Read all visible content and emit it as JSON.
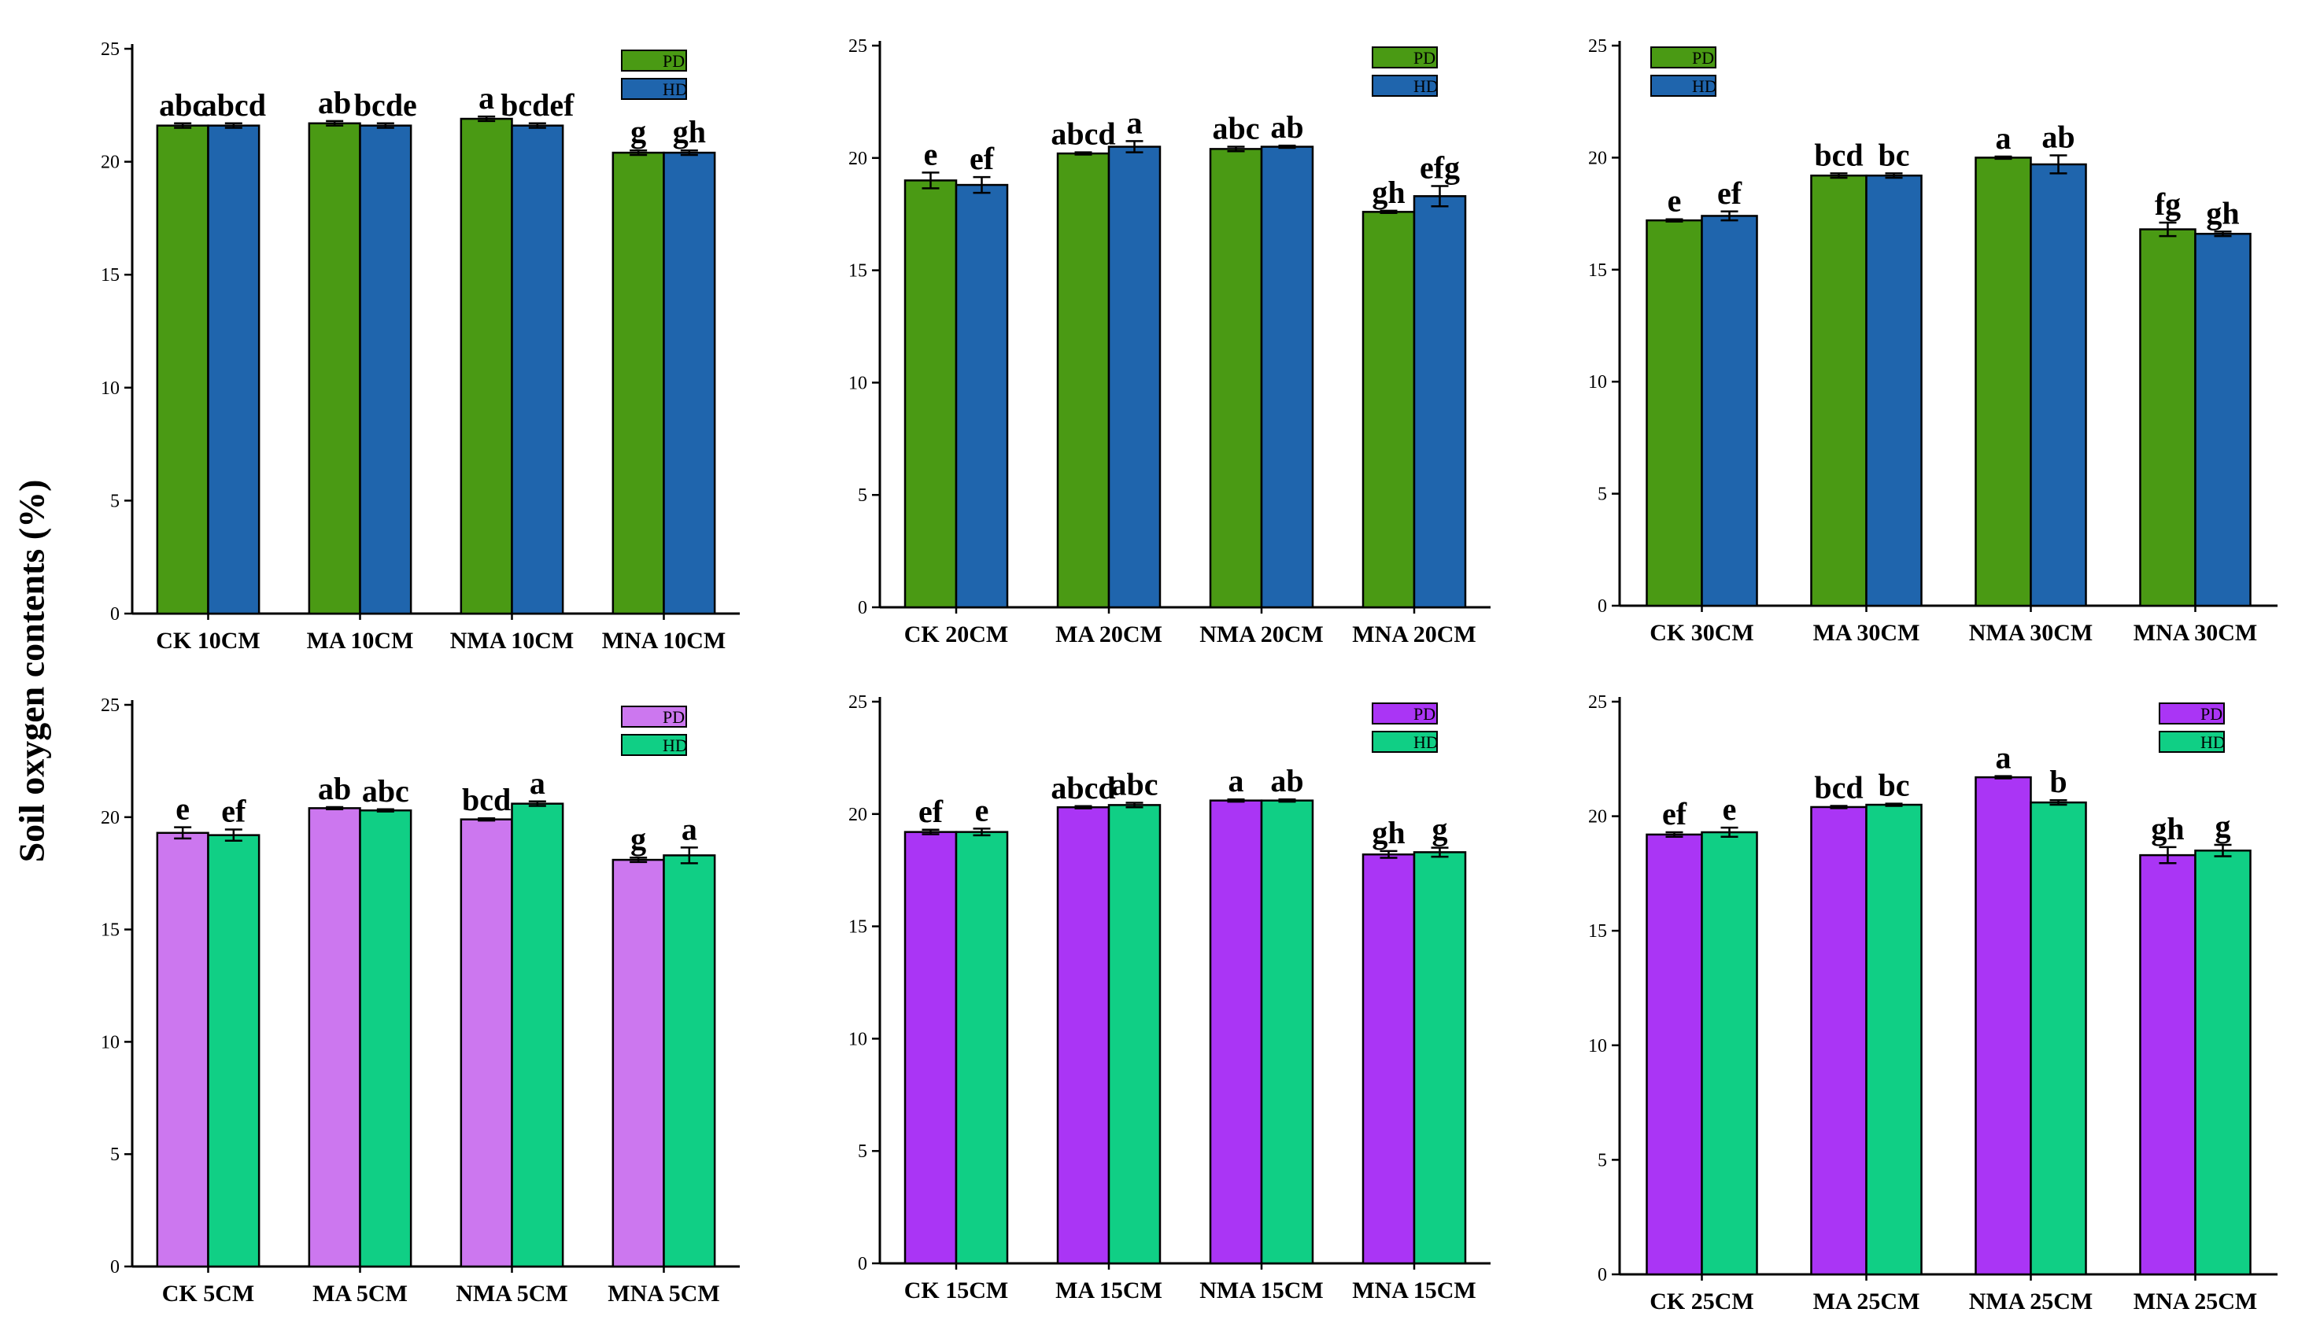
{
  "figure": {
    "ylabel": "Soil oxygen contents (%)"
  },
  "chart_data": [
    {
      "type": "bar",
      "categories": [
        "CK 10CM",
        "MA 10CM",
        "NMA 10CM",
        "MNA 10CM"
      ],
      "series": [
        {
          "name": "PD",
          "color": "#4a9a14",
          "values": [
            21.6,
            21.7,
            21.9,
            20.4
          ],
          "errors": [
            0.1,
            0.1,
            0.1,
            0.1
          ],
          "sig": [
            "abc",
            "ab",
            "a",
            "g"
          ]
        },
        {
          "name": "HD",
          "color": "#1f65ad",
          "values": [
            21.6,
            21.6,
            21.6,
            20.4
          ],
          "errors": [
            0.1,
            0.1,
            0.1,
            0.1
          ],
          "sig": [
            "abcd",
            "bcde",
            "bcdef",
            "gh"
          ]
        }
      ],
      "ylim": [
        0,
        25
      ],
      "yticks": [
        0,
        5,
        10,
        15,
        20,
        25
      ],
      "legend_position": "top-right"
    },
    {
      "type": "bar",
      "categories": [
        "CK 20CM",
        "MA  20CM",
        "NMA 20CM",
        "MNA 20CM"
      ],
      "series": [
        {
          "name": "PD",
          "color": "#4a9a14",
          "values": [
            19.0,
            20.2,
            20.4,
            17.6
          ],
          "errors": [
            0.35,
            0.05,
            0.1,
            0.05
          ],
          "sig": [
            "e",
            "abcd",
            "abc",
            "gh"
          ]
        },
        {
          "name": "HD",
          "color": "#1f65ad",
          "values": [
            18.8,
            20.5,
            20.5,
            18.3
          ],
          "errors": [
            0.35,
            0.25,
            0.05,
            0.45
          ],
          "sig": [
            "ef",
            "a",
            "ab",
            "efg"
          ]
        }
      ],
      "ylim": [
        0,
        25
      ],
      "yticks": [
        0,
        5,
        10,
        15,
        20,
        25
      ],
      "legend_position": "top-right"
    },
    {
      "type": "bar",
      "categories": [
        "CK 30CM",
        "MA 30CM",
        "NMA 30CM",
        "MNA 30CM"
      ],
      "series": [
        {
          "name": "PD",
          "color": "#4a9a14",
          "values": [
            17.2,
            19.2,
            20.0,
            16.8
          ],
          "errors": [
            0.05,
            0.1,
            0.05,
            0.3
          ],
          "sig": [
            "e",
            "bcd",
            "a",
            "fg"
          ]
        },
        {
          "name": "HD",
          "color": "#1f65ad",
          "values": [
            17.4,
            19.2,
            19.7,
            16.6
          ],
          "errors": [
            0.2,
            0.1,
            0.4,
            0.1
          ],
          "sig": [
            "ef",
            "bc",
            "ab",
            "gh"
          ]
        }
      ],
      "ylim": [
        0,
        25
      ],
      "yticks": [
        0,
        5,
        10,
        15,
        20,
        25
      ],
      "legend_position": "top-left"
    },
    {
      "type": "bar",
      "categories": [
        "CK 5CM",
        "MA 5CM",
        "NMA 5CM",
        "MNA 5CM"
      ],
      "series": [
        {
          "name": "PD",
          "color": "#cc77ef",
          "values": [
            19.3,
            20.4,
            19.9,
            18.1
          ],
          "errors": [
            0.25,
            0.05,
            0.05,
            0.1
          ],
          "sig": [
            "e",
            "ab",
            "bcd",
            "g"
          ]
        },
        {
          "name": "HD",
          "color": "#10cf85",
          "values": [
            19.2,
            20.3,
            20.6,
            18.3
          ],
          "errors": [
            0.25,
            0.05,
            0.1,
            0.35
          ],
          "sig": [
            "ef",
            "abc",
            "a",
            "a"
          ]
        }
      ],
      "ylim": [
        0,
        25
      ],
      "yticks": [
        0,
        5,
        10,
        15,
        20,
        25
      ],
      "legend_position": "top-right"
    },
    {
      "type": "bar",
      "categories": [
        "CK 15CM",
        "MA 15CM",
        "NMA 15CM",
        "MNA 15CM"
      ],
      "series": [
        {
          "name": "PD",
          "color": "#aa35f5",
          "values": [
            19.2,
            20.3,
            20.6,
            18.2
          ],
          "errors": [
            0.1,
            0.05,
            0.05,
            0.15
          ],
          "sig": [
            "ef",
            "abcd",
            "a",
            "gh"
          ]
        },
        {
          "name": "HD",
          "color": "#10cf85",
          "values": [
            19.2,
            20.4,
            20.6,
            18.3
          ],
          "errors": [
            0.15,
            0.1,
            0.05,
            0.2
          ],
          "sig": [
            "e",
            "abc",
            "ab",
            "g"
          ]
        }
      ],
      "ylim": [
        0,
        25
      ],
      "yticks": [
        0,
        5,
        10,
        15,
        20,
        25
      ],
      "legend_position": "top-right"
    },
    {
      "type": "bar",
      "categories": [
        "CK 25CM",
        "MA 25CM",
        "NMA 25CM",
        "MNA 25CM"
      ],
      "series": [
        {
          "name": "PD",
          "color": "#aa35f5",
          "values": [
            19.2,
            20.4,
            21.7,
            18.3
          ],
          "errors": [
            0.1,
            0.05,
            0.05,
            0.35
          ],
          "sig": [
            "ef",
            "bcd",
            "a",
            "gh"
          ]
        },
        {
          "name": "HD",
          "color": "#10cf85",
          "values": [
            19.3,
            20.5,
            20.6,
            18.5
          ],
          "errors": [
            0.2,
            0.05,
            0.1,
            0.25
          ],
          "sig": [
            "e",
            "bc",
            "b",
            "g"
          ]
        }
      ],
      "ylim": [
        0,
        25
      ],
      "yticks": [
        0,
        5,
        10,
        15,
        20,
        25
      ],
      "legend_position": "top-right"
    }
  ]
}
